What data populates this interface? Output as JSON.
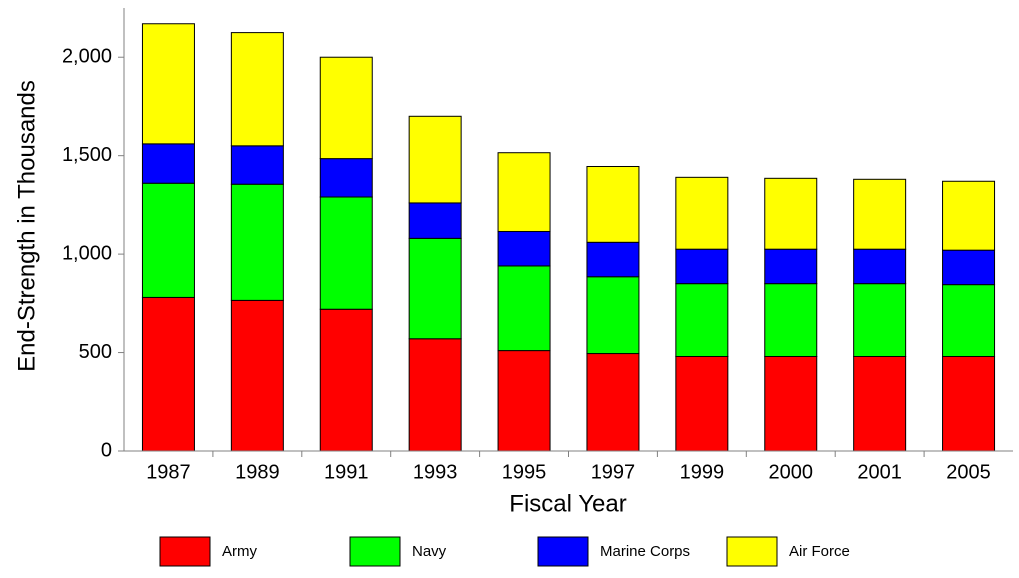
{
  "chart_data": {
    "type": "stacked-bar",
    "x_label": "Fiscal Year",
    "y_label": "End-Strength in Thousands",
    "categories": [
      "1987",
      "1989",
      "1991",
      "1993",
      "1995",
      "1997",
      "1999",
      "2000",
      "2001",
      "2005"
    ],
    "series": [
      {
        "name": "Army",
        "color": "#ff0000",
        "values": [
          780,
          765,
          720,
          570,
          510,
          495,
          480,
          480,
          480,
          480
        ]
      },
      {
        "name": "Navy",
        "color": "#00ff00",
        "values": [
          580,
          590,
          570,
          510,
          430,
          390,
          370,
          370,
          370,
          365
        ]
      },
      {
        "name": "Marine Corps",
        "color": "#0000ff",
        "values": [
          200,
          195,
          195,
          180,
          175,
          175,
          175,
          175,
          175,
          175
        ]
      },
      {
        "name": "Air Force",
        "color": "#ffff00",
        "values": [
          610,
          575,
          515,
          440,
          400,
          385,
          365,
          360,
          355,
          350
        ]
      }
    ],
    "ylim": [
      0,
      2250
    ],
    "yticks": [
      0,
      500,
      {
        "value": 1000,
        "label": "1,000"
      },
      {
        "value": 1500,
        "label": "1,500"
      },
      {
        "value": 2000,
        "label": "2,000"
      }
    ],
    "grid": false,
    "legend": "bottom"
  }
}
